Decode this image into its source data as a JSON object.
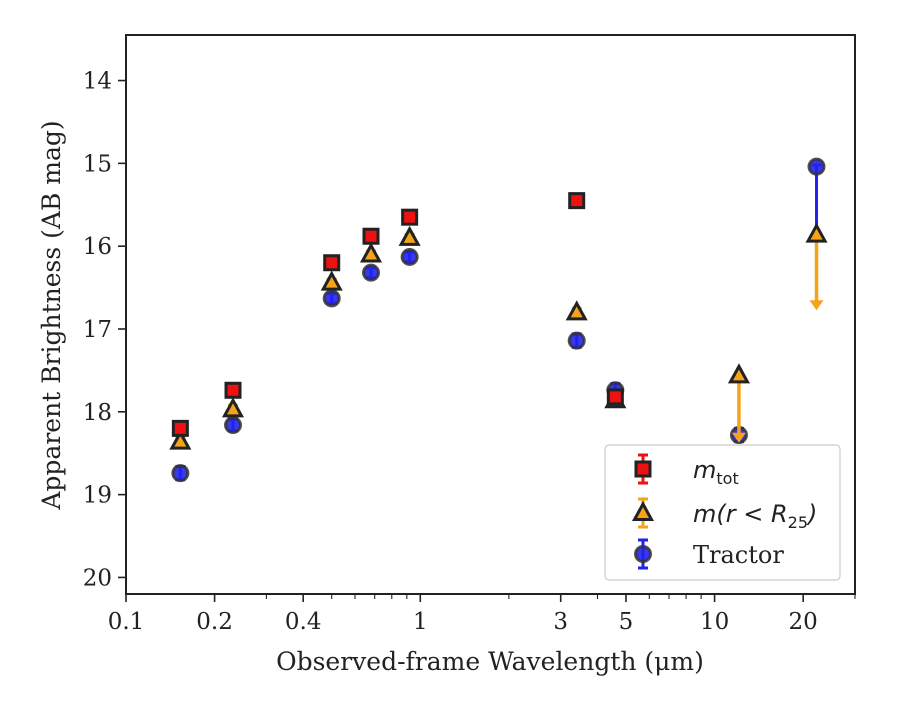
{
  "chart_data": {
    "type": "scatter",
    "xlabel": "Observed-frame Wavelength (μm)",
    "ylabel": "Apparent Brightness (AB mag)",
    "xscale": "log",
    "xlim": [
      0.1,
      30
    ],
    "ylim": [
      20.2,
      13.45
    ],
    "y_inverted": true,
    "xticks": [
      {
        "value": 0.1,
        "label": "0.1"
      },
      {
        "value": 0.2,
        "label": "0.2"
      },
      {
        "value": 0.4,
        "label": "0.4"
      },
      {
        "value": 1,
        "label": "1"
      },
      {
        "value": 3,
        "label": "3"
      },
      {
        "value": 5,
        "label": "5"
      },
      {
        "value": 10,
        "label": "10"
      },
      {
        "value": 20,
        "label": "20"
      }
    ],
    "yticks": [
      {
        "value": 14,
        "label": "14"
      },
      {
        "value": 15,
        "label": "15"
      },
      {
        "value": 16,
        "label": "16"
      },
      {
        "value": 17,
        "label": "17"
      },
      {
        "value": 18,
        "label": "18"
      },
      {
        "value": 19,
        "label": "19"
      },
      {
        "value": 20,
        "label": "20"
      }
    ],
    "grid": false,
    "legend_position": "lower-right",
    "series": [
      {
        "key": "mtot",
        "name": "m_tot",
        "marker": "square",
        "color": "#ee1111",
        "edge": "#222222",
        "points": [
          {
            "x": 0.153,
            "y": 18.2,
            "err": 0.05
          },
          {
            "x": 0.231,
            "y": 17.74,
            "err": 0.05
          },
          {
            "x": 0.5,
            "y": 16.2,
            "err": 0.04
          },
          {
            "x": 0.68,
            "y": 15.88,
            "err": 0.04
          },
          {
            "x": 0.92,
            "y": 15.65,
            "err": 0.04
          },
          {
            "x": 3.4,
            "y": 15.45,
            "err": 0.05
          },
          {
            "x": 4.6,
            "y": 17.82,
            "err": 0.05
          }
        ]
      },
      {
        "key": "mr25",
        "name": "m(r < R25)",
        "marker": "triangle",
        "color": "#f5a31a",
        "edge": "#222222",
        "points": [
          {
            "x": 0.153,
            "y": 18.36,
            "err": 0.05
          },
          {
            "x": 0.231,
            "y": 17.97,
            "err": 0.05
          },
          {
            "x": 0.5,
            "y": 16.44,
            "err": 0.04
          },
          {
            "x": 0.68,
            "y": 16.1,
            "err": 0.04
          },
          {
            "x": 0.92,
            "y": 15.9,
            "err": 0.04
          },
          {
            "x": 3.4,
            "y": 16.8,
            "err": 0.05
          },
          {
            "x": 4.6,
            "y": 17.86,
            "err": 0.05
          },
          {
            "x": 12.1,
            "y": 17.56,
            "limit": 18.35
          },
          {
            "x": 22.2,
            "y": 15.86,
            "limit": 16.75
          }
        ]
      },
      {
        "key": "tractor",
        "name": "Tractor",
        "marker": "circle",
        "color": "#2222ee",
        "edge": "#333333",
        "points": [
          {
            "x": 0.153,
            "y": 18.74,
            "err": 0.08
          },
          {
            "x": 0.231,
            "y": 18.16,
            "err": 0.07
          },
          {
            "x": 0.5,
            "y": 16.63,
            "err": 0.06
          },
          {
            "x": 0.68,
            "y": 16.32,
            "err": 0.06
          },
          {
            "x": 0.92,
            "y": 16.13,
            "err": 0.06
          },
          {
            "x": 3.4,
            "y": 17.14,
            "err": 0.08
          },
          {
            "x": 4.6,
            "y": 17.74,
            "err": 0.08
          },
          {
            "x": 12.1,
            "y": 18.28,
            "err": 0.08
          },
          {
            "x": 22.2,
            "y": 15.04,
            "err_down": 0.82,
            "err_up": 0.02
          }
        ]
      }
    ]
  },
  "legend": {
    "entries": [
      {
        "key": "mtot",
        "label_italic": "m",
        "label_sub": "tot"
      },
      {
        "key": "mr25",
        "label_italic": "m(r < R",
        "label_sub": "25",
        "label_tail": ")"
      },
      {
        "key": "tractor",
        "label": "Tractor"
      }
    ]
  }
}
